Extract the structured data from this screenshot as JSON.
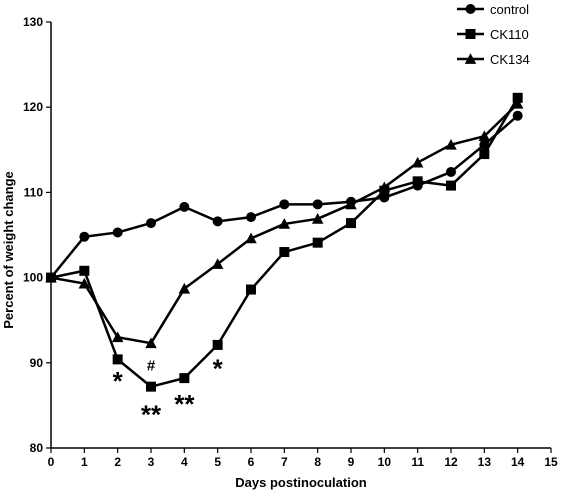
{
  "chart_data": {
    "type": "line",
    "title": "",
    "xlabel": "Days postinoculation",
    "ylabel": "Percent of weight change",
    "xlim": [
      0,
      15
    ],
    "ylim": [
      80,
      130
    ],
    "x_ticks": [
      0,
      1,
      2,
      3,
      4,
      5,
      6,
      7,
      8,
      9,
      10,
      11,
      12,
      13,
      14,
      15
    ],
    "y_ticks": [
      80,
      90,
      100,
      110,
      120,
      130
    ],
    "x_tick_labels": [
      "0",
      "1",
      "2",
      "3",
      "4",
      "5",
      "6",
      "7",
      "8",
      "9",
      "10",
      "11",
      "12",
      "13",
      "14",
      "15"
    ],
    "y_tick_labels": [
      "80",
      "90",
      "100",
      "110",
      "120",
      "130"
    ],
    "grid": false,
    "legend_position": "top-right",
    "series": [
      {
        "name": "control",
        "marker": "circle",
        "color": "#000000",
        "x": [
          0,
          1,
          2,
          3,
          4,
          5,
          6,
          7,
          8,
          9,
          10,
          11,
          12,
          13,
          14
        ],
        "y": [
          100,
          104.8,
          105.3,
          106.4,
          108.3,
          106.6,
          107.1,
          108.6,
          108.6,
          108.9,
          109.4,
          110.8,
          112.4,
          115.6,
          119
        ]
      },
      {
        "name": "CK110",
        "marker": "square",
        "color": "#000000",
        "x": [
          0,
          1,
          2,
          3,
          4,
          5,
          6,
          7,
          8,
          9,
          10,
          11,
          12,
          13,
          14
        ],
        "y": [
          100,
          100.8,
          90.4,
          87.2,
          88.2,
          92.1,
          98.6,
          103,
          104.1,
          106.4,
          110.2,
          111.3,
          110.8,
          114.5,
          121.1
        ]
      },
      {
        "name": "CK134",
        "marker": "triangle",
        "color": "#000000",
        "x": [
          0,
          1,
          2,
          3,
          4,
          5,
          6,
          7,
          8,
          9,
          10,
          11,
          12,
          13,
          14
        ],
        "y": [
          100,
          99.3,
          93,
          92.3,
          98.7,
          101.6,
          104.6,
          106.3,
          106.9,
          108.6,
          110.6,
          113.5,
          115.6,
          116.6,
          120.4
        ]
      }
    ],
    "annotations": [
      {
        "text": "*",
        "x": 2,
        "y": 88.2,
        "size": "large"
      },
      {
        "text": "#",
        "x": 3,
        "y": 89.7,
        "size": "small"
      },
      {
        "text": "**",
        "x": 3,
        "y": 84.3,
        "size": "large"
      },
      {
        "text": "**",
        "x": 4,
        "y": 85.5,
        "size": "large"
      },
      {
        "text": "*",
        "x": 5,
        "y": 89.7,
        "size": "large"
      }
    ]
  }
}
